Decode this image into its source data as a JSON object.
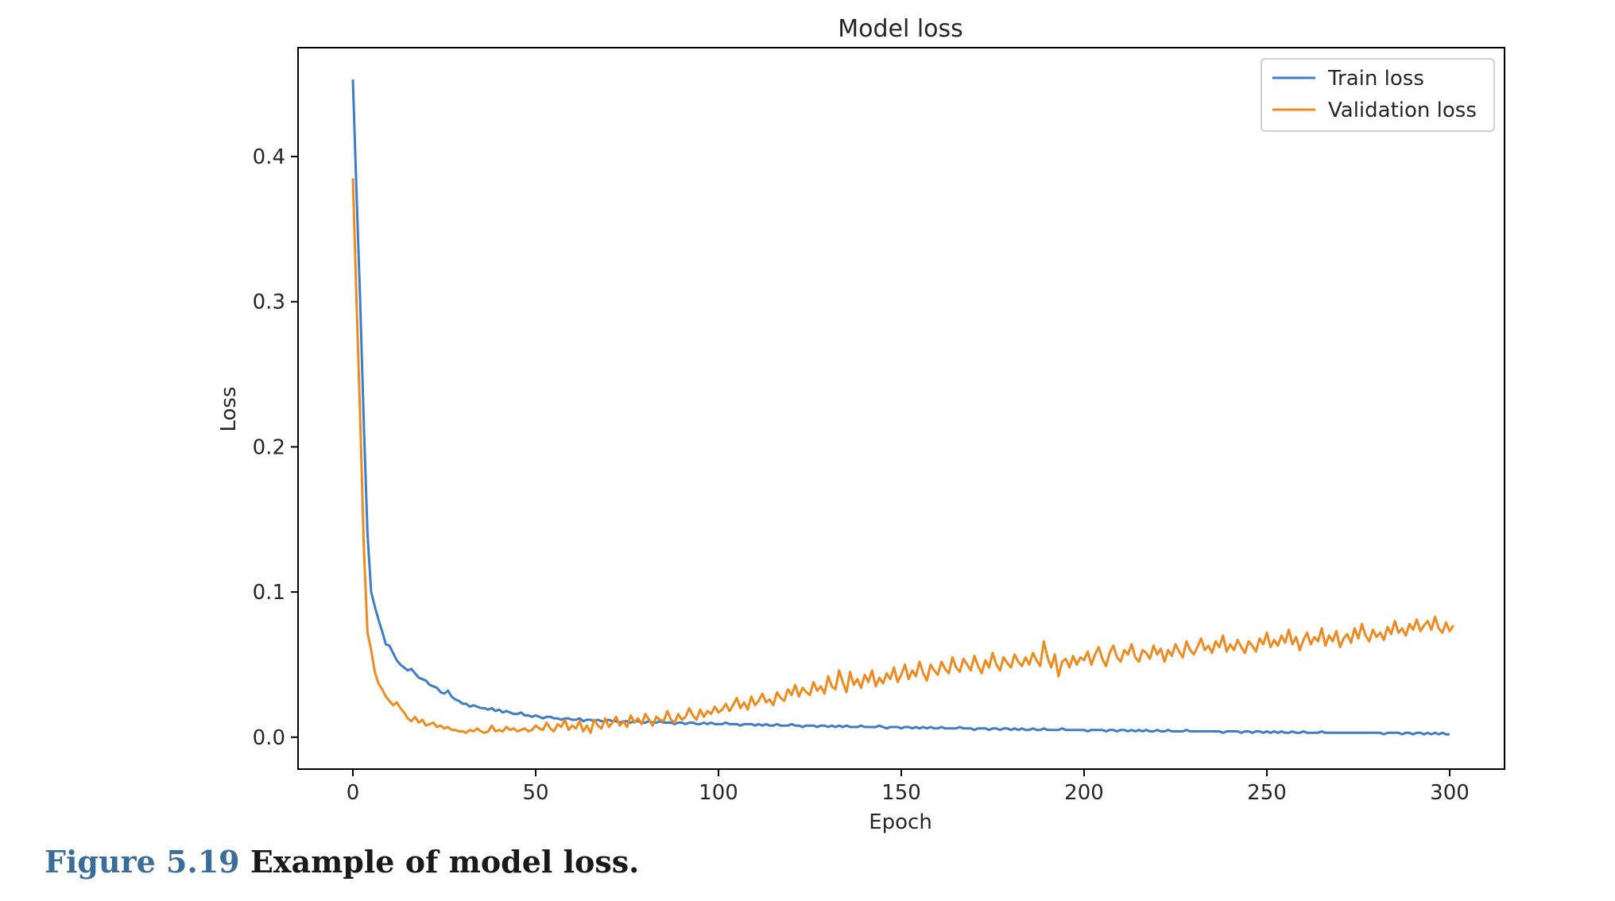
{
  "figure": {
    "label": "Figure 5.19",
    "caption": "Example of model loss."
  },
  "chart_data": {
    "type": "line",
    "title": "Model loss",
    "xlabel": "Epoch",
    "ylabel": "Loss",
    "xlim": [
      -15,
      315
    ],
    "ylim": [
      -0.022,
      0.475
    ],
    "xticks": [
      "0",
      "50",
      "100",
      "150",
      "200",
      "250",
      "300"
    ],
    "xtick_values": [
      0,
      50,
      100,
      150,
      200,
      250,
      300
    ],
    "yticks": [
      "0.0",
      "0.1",
      "0.2",
      "0.3",
      "0.4"
    ],
    "ytick_values": [
      0.0,
      0.1,
      0.2,
      0.3,
      0.4
    ],
    "grid": false,
    "legend_position": "top-right",
    "series": [
      {
        "name": "Train loss",
        "color": "#3d7cc9",
        "values": [
          0.453,
          0.375,
          0.3,
          0.215,
          0.14,
          0.1,
          0.09,
          0.081,
          0.073,
          0.064,
          0.063,
          0.058,
          0.053,
          0.05,
          0.048,
          0.046,
          0.047,
          0.044,
          0.041,
          0.04,
          0.039,
          0.036,
          0.035,
          0.034,
          0.031,
          0.03,
          0.032,
          0.028,
          0.026,
          0.025,
          0.023,
          0.023,
          0.021,
          0.022,
          0.021,
          0.02,
          0.02,
          0.019,
          0.02,
          0.018,
          0.019,
          0.017,
          0.018,
          0.017,
          0.016,
          0.016,
          0.017,
          0.015,
          0.015,
          0.014,
          0.015,
          0.014,
          0.013,
          0.014,
          0.014,
          0.013,
          0.013,
          0.012,
          0.013,
          0.013,
          0.012,
          0.012,
          0.013,
          0.011,
          0.012,
          0.012,
          0.011,
          0.012,
          0.011,
          0.011,
          0.012,
          0.011,
          0.011,
          0.01,
          0.011,
          0.011,
          0.01,
          0.011,
          0.011,
          0.01,
          0.01,
          0.011,
          0.01,
          0.01,
          0.011,
          0.01,
          0.01,
          0.01,
          0.009,
          0.01,
          0.01,
          0.009,
          0.01,
          0.01,
          0.009,
          0.009,
          0.01,
          0.009,
          0.01,
          0.009,
          0.009,
          0.009,
          0.01,
          0.009,
          0.009,
          0.009,
          0.008,
          0.009,
          0.009,
          0.009,
          0.008,
          0.009,
          0.008,
          0.009,
          0.008,
          0.008,
          0.009,
          0.008,
          0.008,
          0.008,
          0.009,
          0.008,
          0.008,
          0.007,
          0.008,
          0.008,
          0.008,
          0.007,
          0.008,
          0.008,
          0.007,
          0.008,
          0.007,
          0.008,
          0.007,
          0.008,
          0.007,
          0.007,
          0.007,
          0.008,
          0.007,
          0.007,
          0.007,
          0.007,
          0.008,
          0.007,
          0.006,
          0.007,
          0.007,
          0.007,
          0.006,
          0.007,
          0.007,
          0.006,
          0.007,
          0.006,
          0.007,
          0.006,
          0.007,
          0.006,
          0.006,
          0.007,
          0.006,
          0.006,
          0.006,
          0.006,
          0.007,
          0.006,
          0.006,
          0.006,
          0.005,
          0.006,
          0.006,
          0.006,
          0.005,
          0.006,
          0.006,
          0.005,
          0.006,
          0.006,
          0.005,
          0.006,
          0.005,
          0.006,
          0.005,
          0.005,
          0.006,
          0.005,
          0.005,
          0.006,
          0.005,
          0.005,
          0.005,
          0.005,
          0.006,
          0.005,
          0.005,
          0.005,
          0.005,
          0.005,
          0.005,
          0.004,
          0.005,
          0.005,
          0.005,
          0.005,
          0.004,
          0.005,
          0.005,
          0.004,
          0.005,
          0.005,
          0.004,
          0.005,
          0.004,
          0.005,
          0.004,
          0.005,
          0.004,
          0.004,
          0.005,
          0.004,
          0.004,
          0.005,
          0.004,
          0.004,
          0.004,
          0.004,
          0.005,
          0.004,
          0.004,
          0.004,
          0.004,
          0.004,
          0.004,
          0.004,
          0.004,
          0.004,
          0.003,
          0.004,
          0.004,
          0.004,
          0.004,
          0.003,
          0.004,
          0.004,
          0.003,
          0.004,
          0.004,
          0.003,
          0.004,
          0.003,
          0.004,
          0.003,
          0.004,
          0.003,
          0.003,
          0.004,
          0.003,
          0.003,
          0.004,
          0.003,
          0.003,
          0.003,
          0.003,
          0.004,
          0.003,
          0.003,
          0.003,
          0.003,
          0.003,
          0.003,
          0.003,
          0.003,
          0.003,
          0.003,
          0.003,
          0.003,
          0.003,
          0.003,
          0.003,
          0.003,
          0.002,
          0.003,
          0.003,
          0.003,
          0.003,
          0.002,
          0.003,
          0.003,
          0.002,
          0.003,
          0.003,
          0.002,
          0.003,
          0.002,
          0.003,
          0.002,
          0.003,
          0.002,
          0.002
        ]
      },
      {
        "name": "Validation loss",
        "color": "#ef8a1e",
        "values": [
          0.385,
          0.3,
          0.22,
          0.13,
          0.072,
          0.06,
          0.045,
          0.037,
          0.033,
          0.028,
          0.025,
          0.022,
          0.024,
          0.02,
          0.017,
          0.013,
          0.011,
          0.014,
          0.01,
          0.012,
          0.008,
          0.009,
          0.01,
          0.007,
          0.008,
          0.006,
          0.007,
          0.005,
          0.005,
          0.004,
          0.004,
          0.003,
          0.005,
          0.004,
          0.006,
          0.004,
          0.003,
          0.004,
          0.008,
          0.004,
          0.005,
          0.004,
          0.007,
          0.005,
          0.006,
          0.004,
          0.005,
          0.006,
          0.004,
          0.005,
          0.008,
          0.006,
          0.005,
          0.01,
          0.006,
          0.004,
          0.009,
          0.007,
          0.012,
          0.005,
          0.008,
          0.006,
          0.011,
          0.004,
          0.008,
          0.003,
          0.012,
          0.008,
          0.006,
          0.013,
          0.007,
          0.01,
          0.014,
          0.008,
          0.011,
          0.007,
          0.015,
          0.01,
          0.013,
          0.009,
          0.016,
          0.012,
          0.008,
          0.014,
          0.012,
          0.011,
          0.018,
          0.012,
          0.01,
          0.016,
          0.012,
          0.014,
          0.02,
          0.015,
          0.012,
          0.019,
          0.014,
          0.018,
          0.016,
          0.021,
          0.017,
          0.019,
          0.023,
          0.018,
          0.022,
          0.027,
          0.02,
          0.024,
          0.019,
          0.028,
          0.022,
          0.025,
          0.03,
          0.024,
          0.026,
          0.022,
          0.031,
          0.027,
          0.025,
          0.033,
          0.029,
          0.036,
          0.028,
          0.034,
          0.031,
          0.029,
          0.038,
          0.032,
          0.035,
          0.03,
          0.042,
          0.035,
          0.033,
          0.046,
          0.038,
          0.031,
          0.045,
          0.036,
          0.04,
          0.034,
          0.043,
          0.038,
          0.046,
          0.035,
          0.041,
          0.037,
          0.044,
          0.04,
          0.048,
          0.038,
          0.043,
          0.05,
          0.04,
          0.046,
          0.042,
          0.052,
          0.044,
          0.039,
          0.05,
          0.046,
          0.043,
          0.052,
          0.047,
          0.044,
          0.055,
          0.048,
          0.045,
          0.054,
          0.05,
          0.046,
          0.056,
          0.049,
          0.044,
          0.053,
          0.048,
          0.058,
          0.05,
          0.046,
          0.055,
          0.051,
          0.048,
          0.057,
          0.052,
          0.049,
          0.055,
          0.05,
          0.058,
          0.053,
          0.049,
          0.066,
          0.055,
          0.048,
          0.057,
          0.042,
          0.052,
          0.054,
          0.048,
          0.056,
          0.05,
          0.055,
          0.053,
          0.059,
          0.05,
          0.057,
          0.062,
          0.054,
          0.049,
          0.058,
          0.063,
          0.055,
          0.052,
          0.06,
          0.057,
          0.064,
          0.055,
          0.052,
          0.06,
          0.058,
          0.054,
          0.063,
          0.057,
          0.061,
          0.052,
          0.06,
          0.056,
          0.064,
          0.059,
          0.055,
          0.066,
          0.06,
          0.057,
          0.062,
          0.068,
          0.06,
          0.063,
          0.058,
          0.066,
          0.062,
          0.07,
          0.059,
          0.064,
          0.06,
          0.067,
          0.062,
          0.058,
          0.066,
          0.063,
          0.059,
          0.068,
          0.064,
          0.072,
          0.062,
          0.067,
          0.063,
          0.07,
          0.065,
          0.074,
          0.064,
          0.069,
          0.06,
          0.067,
          0.072,
          0.064,
          0.069,
          0.066,
          0.075,
          0.063,
          0.07,
          0.066,
          0.073,
          0.062,
          0.068,
          0.071,
          0.065,
          0.075,
          0.068,
          0.078,
          0.07,
          0.066,
          0.074,
          0.069,
          0.072,
          0.067,
          0.076,
          0.071,
          0.08,
          0.072,
          0.075,
          0.07,
          0.078,
          0.074,
          0.081,
          0.073,
          0.077,
          0.08,
          0.074,
          0.083,
          0.075,
          0.072,
          0.079,
          0.073,
          0.077
        ]
      }
    ]
  }
}
